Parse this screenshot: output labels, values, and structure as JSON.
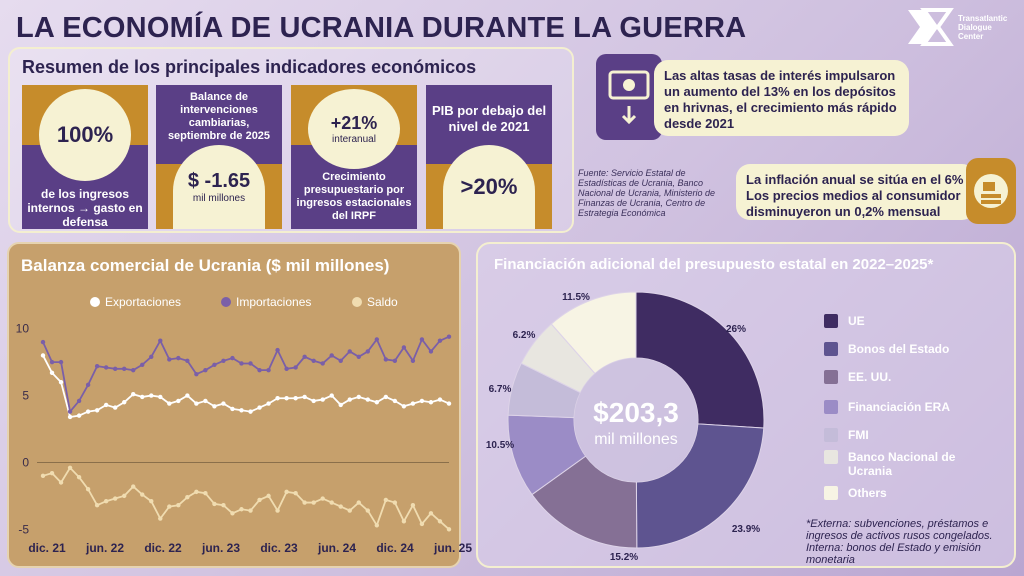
{
  "title": "LA ECONOMÍA DE UCRANIA DURANTE LA GUERRA",
  "logo": {
    "l1": "Transatlantic",
    "l2": "Dialogue",
    "l3": "Center"
  },
  "summary": {
    "heading": "Resumen de los principales indicadores económicos",
    "card1": {
      "big": "100%",
      "text": "de los ingresos internos → gasto en defensa"
    },
    "card2": {
      "head": "Balance de intervenciones cambiarias, septiembre de 2025",
      "big": "$ -1.65",
      "sub": "mil millones"
    },
    "card3": {
      "big": "+21%",
      "sub": "interanual",
      "text": "Crecimiento presupuestario por ingresos estacionales del IRPF"
    },
    "card4": {
      "head": "PIB por debajo del nivel de 2021",
      "big": ">20%"
    }
  },
  "callouts": {
    "deposits": "Las altas tasas de interés impulsaron un aumento del 13% en los depósitos en hrivnas, el crecimiento más rápido desde 2021",
    "inflation_l1": "La inflación anual se sitúa en el 6%",
    "inflation_l2": "Los precios medios al consumidor disminuyeron un 0,2% mensual",
    "source": "Fuente: Servicio Estatal de Estadísticas de Ucrania, Banco Nacional de Ucrania, Ministerio de Finanzas de Ucrania, Centro de Estrategia Económica"
  },
  "colors": {
    "purple": "#5a3f86",
    "gold": "#c68c2b",
    "cream": "#f6f2d3"
  },
  "chart_data": [
    {
      "type": "line",
      "title": "Balanza comercial de Ucrania ($ mil millones)",
      "x_ticks": [
        "dic. 21",
        "jun. 22",
        "dic. 22",
        "jun. 23",
        "dic. 23",
        "jun. 24",
        "dic. 24",
        "jun. 25"
      ],
      "ylim": [
        -5.5,
        10.5
      ],
      "y_ticks": [
        10,
        5,
        0,
        -5
      ],
      "grid": false,
      "legend": "top",
      "series": [
        {
          "name": "Exportaciones",
          "color": "#ffffff",
          "values": [
            8.0,
            6.7,
            6.0,
            3.4,
            3.5,
            3.8,
            3.9,
            4.3,
            4.1,
            4.5,
            5.1,
            4.9,
            5.0,
            4.9,
            4.4,
            4.6,
            5.0,
            4.4,
            4.6,
            4.2,
            4.4,
            4.0,
            3.9,
            3.8,
            4.1,
            4.4,
            4.8,
            4.8,
            4.8,
            4.9,
            4.6,
            4.7,
            5.0,
            4.3,
            4.7,
            4.9,
            4.7,
            4.5,
            4.9,
            4.6,
            4.2,
            4.4,
            4.6,
            4.5,
            4.7,
            4.4
          ]
        },
        {
          "name": "Importaciones",
          "color": "#7a5fa8",
          "values": [
            9.0,
            7.5,
            7.5,
            3.8,
            4.6,
            5.8,
            7.2,
            7.1,
            7.0,
            7.0,
            6.9,
            7.3,
            7.9,
            9.1,
            7.7,
            7.8,
            7.6,
            6.6,
            6.9,
            7.3,
            7.6,
            7.8,
            7.4,
            7.4,
            6.9,
            6.9,
            8.4,
            7.0,
            7.1,
            7.9,
            7.6,
            7.4,
            8.0,
            7.6,
            8.3,
            7.9,
            8.3,
            9.2,
            7.7,
            7.6,
            8.6,
            7.6,
            9.2,
            8.3,
            9.1,
            9.4
          ]
        },
        {
          "name": "Saldo",
          "color": "#f0dcb0",
          "values": [
            -1.0,
            -0.8,
            -1.5,
            -0.4,
            -1.1,
            -2.0,
            -3.2,
            -2.9,
            -2.7,
            -2.5,
            -1.8,
            -2.4,
            -2.9,
            -4.2,
            -3.3,
            -3.2,
            -2.6,
            -2.2,
            -2.3,
            -3.1,
            -3.2,
            -3.8,
            -3.5,
            -3.6,
            -2.8,
            -2.5,
            -3.6,
            -2.2,
            -2.3,
            -3.0,
            -3.0,
            -2.7,
            -3.0,
            -3.3,
            -3.6,
            -3.0,
            -3.6,
            -4.7,
            -2.8,
            -3.0,
            -4.4,
            -3.2,
            -4.6,
            -3.8,
            -4.4,
            -5.0
          ]
        }
      ]
    },
    {
      "type": "pie",
      "title": "Financiación adicional del presupuesto estatal en 2022–2025*",
      "center_value": "$203,3",
      "center_unit": "mil millones",
      "legend": "right",
      "slices": [
        {
          "label": "UE",
          "value": 26,
          "text": "26%",
          "color": "#3f2c62"
        },
        {
          "label": "Bonos del Estado",
          "value": 23.9,
          "text": "23.9%",
          "color": "#5e5490"
        },
        {
          "label": "EE. UU.",
          "value": 15.2,
          "text": "15.2%",
          "color": "#857095"
        },
        {
          "label": "Financiación ERA",
          "value": 10.5,
          "text": "10.5%",
          "color": "#9b8cc6"
        },
        {
          "label": "FMI",
          "value": 6.7,
          "text": "6.7%",
          "color": "#c4bcd9"
        },
        {
          "label": "Banco Nacional de Ucrania",
          "value": 6.2,
          "text": "6.2%",
          "color": "#e8e6e0"
        },
        {
          "label": "Others",
          "value": 11.5,
          "text": "11.5%",
          "color": "#f7f4e4"
        }
      ],
      "note": "*Externa: subvenciones, préstamos e ingresos de activos rusos congelados. Interna: bonos del Estado y emisión monetaria"
    }
  ]
}
